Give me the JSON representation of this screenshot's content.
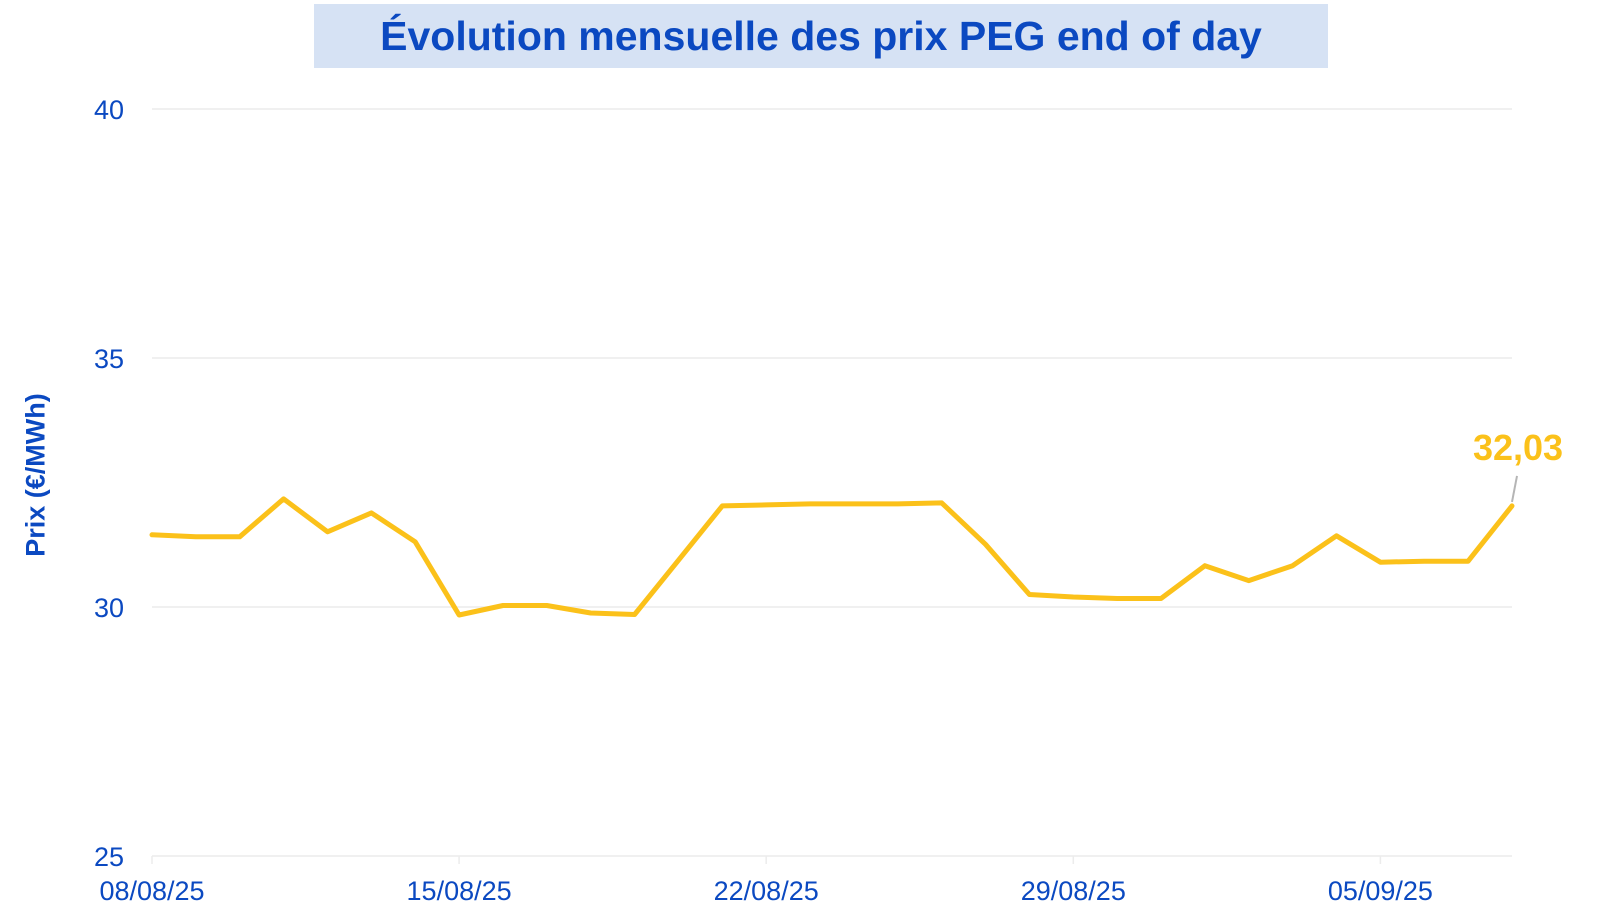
{
  "chart_data": {
    "type": "line",
    "title": "Évolution mensuelle des prix PEG end of day",
    "xlabel": "",
    "ylabel": "Prix (€/MWh)",
    "ylim": [
      25,
      40
    ],
    "yticks": [
      "40",
      "35",
      "30",
      "25"
    ],
    "ytick_values": [
      40,
      35,
      30,
      25
    ],
    "xticks": [
      "08/08/25",
      "15/08/25",
      "22/08/25",
      "29/08/25",
      "05/09/25"
    ],
    "xlim": [
      "2025-08-08",
      "2025-09-08"
    ],
    "grid": true,
    "legend": "none",
    "colors": {
      "line": "#fbc11a",
      "text": "#0b49c1",
      "title_background": "#d6e2f4",
      "grid": "#ececec",
      "leader": "#b5b5b5"
    },
    "series": [
      {
        "x": [
          "2025-08-08",
          "2025-08-09",
          "2025-08-10",
          "2025-08-11",
          "2025-08-12",
          "2025-08-13",
          "2025-08-14",
          "2025-08-15",
          "2025-08-16",
          "2025-08-17",
          "2025-08-18",
          "2025-08-19",
          "2025-08-20",
          "2025-08-21",
          "2025-08-22",
          "2025-08-23",
          "2025-08-24",
          "2025-08-25",
          "2025-08-26",
          "2025-08-27",
          "2025-08-28",
          "2025-08-29",
          "2025-08-30",
          "2025-08-31",
          "2025-09-01",
          "2025-09-02",
          "2025-09-03",
          "2025-09-04",
          "2025-09-05",
          "2025-09-06",
          "2025-09-07",
          "2025-09-08"
        ],
        "values": [
          31.45,
          31.41,
          31.41,
          32.17,
          31.51,
          31.89,
          31.31,
          29.84,
          30.03,
          30.03,
          29.88,
          29.85,
          30.94,
          32.03,
          32.05,
          32.07,
          32.07,
          32.07,
          32.09,
          31.26,
          30.25,
          30.2,
          30.17,
          30.17,
          30.83,
          30.53,
          30.83,
          31.43,
          30.9,
          30.92,
          30.92,
          32.03
        ]
      }
    ],
    "annotations": [
      {
        "label": "32,03",
        "x": "2025-09-08",
        "y": 32.03
      }
    ]
  }
}
